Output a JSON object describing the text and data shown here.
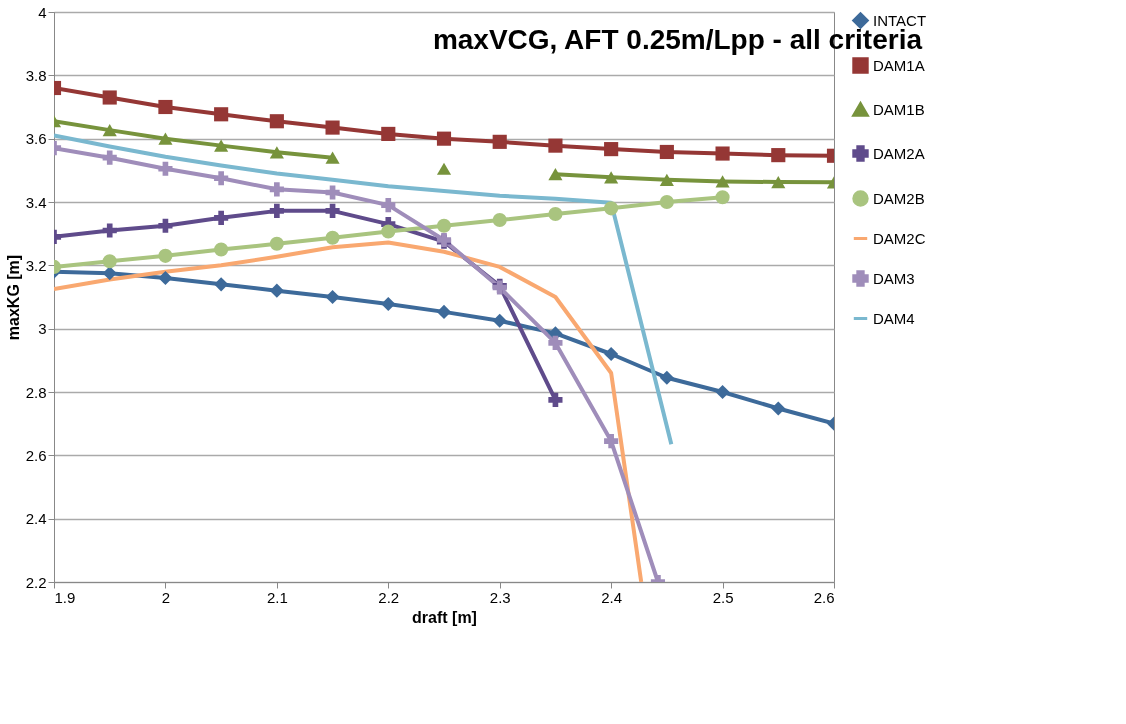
{
  "chart_data": {
    "type": "line",
    "title": "maxVCG, AFT 0.25m/Lpp - all criteria",
    "xlabel": "draft [m]",
    "ylabel": "maxKG [m]",
    "x": [
      1.9,
      1.95,
      2.0,
      2.05,
      2.1,
      2.15,
      2.2,
      2.25,
      2.3,
      2.35,
      2.4,
      2.45,
      2.5,
      2.55,
      2.6
    ],
    "xlim": [
      1.9,
      2.6
    ],
    "xticks": [
      1.9,
      2,
      2.1,
      2.2,
      2.3,
      2.4,
      2.5,
      2.6
    ],
    "ylim": [
      2.2,
      4
    ],
    "yticks": [
      2.2,
      2.4,
      2.6,
      2.8,
      3,
      3.2,
      3.4,
      3.6,
      3.8,
      4
    ],
    "grid": "y",
    "legend": "right",
    "series": [
      {
        "name": "INTACT",
        "color": "#3d6a9a",
        "marker": "diamond",
        "values": [
          3.18,
          3.175,
          3.16,
          3.14,
          3.12,
          3.1,
          3.078,
          3.053,
          3.025,
          2.985,
          2.92,
          2.845,
          2.8,
          2.748,
          2.7
        ]
      },
      {
        "name": "DAM1A",
        "color": "#953735",
        "marker": "square",
        "values": [
          3.76,
          3.73,
          3.7,
          3.677,
          3.655,
          3.635,
          3.615,
          3.6,
          3.59,
          3.578,
          3.567,
          3.558,
          3.553,
          3.548,
          3.546
        ]
      },
      {
        "name": "DAM1B",
        "color": "#77933c",
        "marker": "triangle",
        "values": [
          3.655,
          3.627,
          3.6,
          3.578,
          3.557,
          3.54,
          null,
          3.505,
          null,
          3.488,
          3.478,
          3.47,
          3.465,
          3.463,
          3.462
        ]
      },
      {
        "name": "DAM2A",
        "color": "#5f4b8b",
        "marker": "cross",
        "x": [
          1.9,
          1.95,
          2.0,
          2.05,
          2.1,
          2.15,
          2.2,
          2.25,
          2.3,
          2.35
        ],
        "values": [
          3.29,
          3.31,
          3.325,
          3.35,
          3.372,
          3.372,
          3.33,
          3.275,
          3.135,
          2.775
        ]
      },
      {
        "name": "DAM2B",
        "color": "#a9c47f",
        "marker": "circle",
        "x": [
          1.9,
          1.95,
          2.0,
          2.05,
          2.1,
          2.15,
          2.2,
          2.25,
          2.3,
          2.35,
          2.4,
          2.45,
          2.5
        ],
        "values": [
          3.195,
          3.213,
          3.23,
          3.25,
          3.268,
          3.287,
          3.307,
          3.325,
          3.343,
          3.362,
          3.38,
          3.4,
          3.415
        ]
      },
      {
        "name": "DAM2C",
        "color": "#f9a870",
        "marker": "none",
        "x": [
          1.9,
          1.95,
          2.0,
          2.05,
          2.1,
          2.15,
          2.2,
          2.25,
          2.3,
          2.35,
          2.4,
          2.427
        ],
        "values": [
          3.125,
          3.155,
          3.18,
          3.2,
          3.227,
          3.257,
          3.272,
          3.243,
          3.195,
          3.1,
          2.86,
          2.2
        ]
      },
      {
        "name": "DAM3",
        "color": "#9f8dba",
        "marker": "cross",
        "x": [
          1.9,
          1.95,
          2.0,
          2.05,
          2.1,
          2.15,
          2.2,
          2.25,
          2.3,
          2.35,
          2.4,
          2.442
        ],
        "values": [
          3.57,
          3.54,
          3.505,
          3.475,
          3.44,
          3.43,
          3.39,
          3.28,
          3.13,
          2.955,
          2.645,
          2.2
        ]
      },
      {
        "name": "DAM4",
        "color": "#7ab8cf",
        "marker": "none",
        "x": [
          1.9,
          1.95,
          2.0,
          2.05,
          2.1,
          2.15,
          2.2,
          2.25,
          2.3,
          2.35,
          2.4,
          2.454
        ],
        "values": [
          3.61,
          3.575,
          3.543,
          3.515,
          3.49,
          3.47,
          3.45,
          3.435,
          3.42,
          3.41,
          3.398,
          2.635
        ]
      }
    ]
  }
}
